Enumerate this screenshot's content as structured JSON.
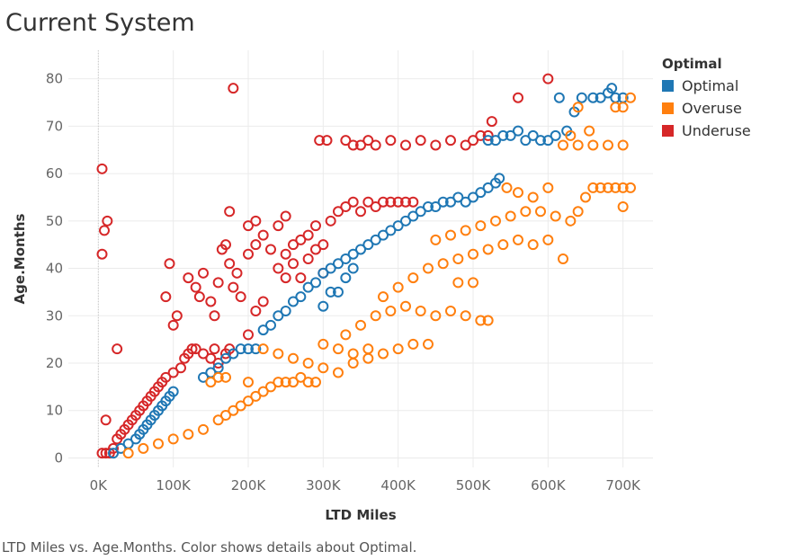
{
  "title": "Current System",
  "caption": "LTD Miles vs. Age.Months.  Color shows details about Optimal.",
  "legend": {
    "title": "Optimal",
    "items": [
      {
        "label": "Optimal",
        "color": "#1f77b4"
      },
      {
        "label": "Overuse",
        "color": "#ff7f0e"
      },
      {
        "label": "Underuse",
        "color": "#d62728"
      }
    ]
  },
  "chart_data": {
    "type": "scatter",
    "title": "Current System",
    "xlabel": "LTD Miles",
    "ylabel": "Age.Months",
    "xlim": [
      -40000,
      740000
    ],
    "ylim": [
      -2,
      86
    ],
    "xticks": [
      {
        "value": 0,
        "label": "0K"
      },
      {
        "value": 100000,
        "label": "100K"
      },
      {
        "value": 200000,
        "label": "200K"
      },
      {
        "value": 300000,
        "label": "300K"
      },
      {
        "value": 400000,
        "label": "400K"
      },
      {
        "value": 500000,
        "label": "500K"
      },
      {
        "value": 600000,
        "label": "600K"
      },
      {
        "value": 700000,
        "label": "700K"
      }
    ],
    "yticks": [
      {
        "value": 0,
        "label": "0"
      },
      {
        "value": 10,
        "label": "10"
      },
      {
        "value": 20,
        "label": "20"
      },
      {
        "value": 30,
        "label": "30"
      },
      {
        "value": 40,
        "label": "40"
      },
      {
        "value": 50,
        "label": "50"
      },
      {
        "value": 60,
        "label": "60"
      },
      {
        "value": 70,
        "label": "70"
      },
      {
        "value": 80,
        "label": "80"
      }
    ],
    "grid": true,
    "legend_position": "right",
    "series": [
      {
        "name": "Underuse",
        "color": "#d62728",
        "points": [
          [
            5000,
            1
          ],
          [
            10000,
            1
          ],
          [
            15000,
            1
          ],
          [
            20000,
            2
          ],
          [
            10000,
            8
          ],
          [
            25000,
            4
          ],
          [
            30000,
            5
          ],
          [
            35000,
            6
          ],
          [
            40000,
            7
          ],
          [
            45000,
            8
          ],
          [
            50000,
            9
          ],
          [
            55000,
            10
          ],
          [
            60000,
            11
          ],
          [
            65000,
            12
          ],
          [
            70000,
            13
          ],
          [
            25000,
            23
          ],
          [
            5000,
            43
          ],
          [
            8000,
            48
          ],
          [
            12000,
            50
          ],
          [
            5000,
            61
          ],
          [
            75000,
            14
          ],
          [
            80000,
            15
          ],
          [
            85000,
            16
          ],
          [
            90000,
            17
          ],
          [
            100000,
            18
          ],
          [
            110000,
            19
          ],
          [
            115000,
            21
          ],
          [
            120000,
            22
          ],
          [
            125000,
            23
          ],
          [
            130000,
            23
          ],
          [
            140000,
            22
          ],
          [
            150000,
            21
          ],
          [
            155000,
            23
          ],
          [
            160000,
            20
          ],
          [
            170000,
            22
          ],
          [
            175000,
            23
          ],
          [
            90000,
            34
          ],
          [
            100000,
            28
          ],
          [
            105000,
            30
          ],
          [
            95000,
            41
          ],
          [
            120000,
            38
          ],
          [
            130000,
            36
          ],
          [
            135000,
            34
          ],
          [
            140000,
            39
          ],
          [
            150000,
            33
          ],
          [
            155000,
            30
          ],
          [
            160000,
            37
          ],
          [
            165000,
            44
          ],
          [
            170000,
            45
          ],
          [
            175000,
            41
          ],
          [
            180000,
            36
          ],
          [
            185000,
            39
          ],
          [
            190000,
            34
          ],
          [
            200000,
            43
          ],
          [
            210000,
            45
          ],
          [
            220000,
            47
          ],
          [
            230000,
            44
          ],
          [
            240000,
            49
          ],
          [
            250000,
            43
          ],
          [
            260000,
            45
          ],
          [
            270000,
            46
          ],
          [
            280000,
            47
          ],
          [
            290000,
            49
          ],
          [
            300000,
            45
          ],
          [
            310000,
            50
          ],
          [
            320000,
            52
          ],
          [
            330000,
            53
          ],
          [
            340000,
            54
          ],
          [
            350000,
            52
          ],
          [
            360000,
            54
          ],
          [
            370000,
            53
          ],
          [
            380000,
            54
          ],
          [
            390000,
            54
          ],
          [
            400000,
            54
          ],
          [
            410000,
            54
          ],
          [
            420000,
            54
          ],
          [
            175000,
            52
          ],
          [
            200000,
            49
          ],
          [
            250000,
            51
          ],
          [
            210000,
            50
          ],
          [
            240000,
            40
          ],
          [
            250000,
            38
          ],
          [
            260000,
            41
          ],
          [
            270000,
            38
          ],
          [
            280000,
            42
          ],
          [
            290000,
            44
          ],
          [
            300000,
            39
          ],
          [
            200000,
            26
          ],
          [
            210000,
            31
          ],
          [
            220000,
            33
          ],
          [
            180000,
            78
          ],
          [
            295000,
            67
          ],
          [
            305000,
            67
          ],
          [
            350000,
            66
          ],
          [
            370000,
            66
          ],
          [
            390000,
            67
          ],
          [
            410000,
            66
          ],
          [
            430000,
            67
          ],
          [
            450000,
            66
          ],
          [
            470000,
            67
          ],
          [
            490000,
            66
          ],
          [
            500000,
            67
          ],
          [
            510000,
            68
          ],
          [
            520000,
            68
          ],
          [
            525000,
            71
          ],
          [
            560000,
            76
          ],
          [
            600000,
            80
          ],
          [
            330000,
            67
          ],
          [
            340000,
            66
          ],
          [
            360000,
            67
          ]
        ]
      },
      {
        "name": "Optimal",
        "color": "#1f77b4",
        "points": [
          [
            20000,
            1
          ],
          [
            30000,
            2
          ],
          [
            40000,
            3
          ],
          [
            50000,
            4
          ],
          [
            55000,
            5
          ],
          [
            60000,
            6
          ],
          [
            65000,
            7
          ],
          [
            70000,
            8
          ],
          [
            75000,
            9
          ],
          [
            80000,
            10
          ],
          [
            85000,
            11
          ],
          [
            90000,
            12
          ],
          [
            95000,
            13
          ],
          [
            100000,
            14
          ],
          [
            140000,
            17
          ],
          [
            150000,
            18
          ],
          [
            160000,
            19
          ],
          [
            170000,
            21
          ],
          [
            180000,
            22
          ],
          [
            190000,
            23
          ],
          [
            200000,
            23
          ],
          [
            210000,
            23
          ],
          [
            220000,
            27
          ],
          [
            230000,
            28
          ],
          [
            240000,
            30
          ],
          [
            250000,
            31
          ],
          [
            260000,
            33
          ],
          [
            270000,
            34
          ],
          [
            280000,
            36
          ],
          [
            290000,
            37
          ],
          [
            300000,
            39
          ],
          [
            310000,
            40
          ],
          [
            320000,
            41
          ],
          [
            330000,
            42
          ],
          [
            340000,
            43
          ],
          [
            350000,
            44
          ],
          [
            360000,
            45
          ],
          [
            370000,
            46
          ],
          [
            380000,
            47
          ],
          [
            390000,
            48
          ],
          [
            400000,
            49
          ],
          [
            410000,
            50
          ],
          [
            420000,
            51
          ],
          [
            430000,
            52
          ],
          [
            440000,
            53
          ],
          [
            450000,
            53
          ],
          [
            460000,
            54
          ],
          [
            470000,
            54
          ],
          [
            480000,
            55
          ],
          [
            490000,
            54
          ],
          [
            500000,
            55
          ],
          [
            510000,
            56
          ],
          [
            520000,
            57
          ],
          [
            530000,
            58
          ],
          [
            535000,
            59
          ],
          [
            520000,
            67
          ],
          [
            530000,
            67
          ],
          [
            540000,
            68
          ],
          [
            550000,
            68
          ],
          [
            560000,
            69
          ],
          [
            570000,
            67
          ],
          [
            580000,
            68
          ],
          [
            590000,
            67
          ],
          [
            600000,
            67
          ],
          [
            610000,
            68
          ],
          [
            625000,
            69
          ],
          [
            615000,
            76
          ],
          [
            635000,
            73
          ],
          [
            645000,
            76
          ],
          [
            660000,
            76
          ],
          [
            670000,
            76
          ],
          [
            680000,
            77
          ],
          [
            690000,
            76
          ],
          [
            700000,
            76
          ],
          [
            685000,
            78
          ],
          [
            320000,
            35
          ],
          [
            330000,
            38
          ],
          [
            340000,
            40
          ],
          [
            300000,
            32
          ],
          [
            310000,
            35
          ]
        ]
      },
      {
        "name": "Overuse",
        "color": "#ff7f0e",
        "points": [
          [
            40000,
            1
          ],
          [
            60000,
            2
          ],
          [
            80000,
            3
          ],
          [
            100000,
            4
          ],
          [
            120000,
            5
          ],
          [
            140000,
            6
          ],
          [
            160000,
            8
          ],
          [
            170000,
            9
          ],
          [
            180000,
            10
          ],
          [
            190000,
            11
          ],
          [
            200000,
            12
          ],
          [
            210000,
            13
          ],
          [
            220000,
            14
          ],
          [
            230000,
            15
          ],
          [
            240000,
            16
          ],
          [
            250000,
            16
          ],
          [
            260000,
            16
          ],
          [
            270000,
            17
          ],
          [
            280000,
            16
          ],
          [
            290000,
            16
          ],
          [
            150000,
            16
          ],
          [
            160000,
            17
          ],
          [
            170000,
            17
          ],
          [
            200000,
            16
          ],
          [
            220000,
            23
          ],
          [
            240000,
            22
          ],
          [
            260000,
            21
          ],
          [
            280000,
            20
          ],
          [
            300000,
            19
          ],
          [
            320000,
            18
          ],
          [
            340000,
            20
          ],
          [
            360000,
            21
          ],
          [
            380000,
            22
          ],
          [
            400000,
            23
          ],
          [
            420000,
            24
          ],
          [
            440000,
            24
          ],
          [
            300000,
            24
          ],
          [
            320000,
            23
          ],
          [
            340000,
            22
          ],
          [
            360000,
            23
          ],
          [
            330000,
            26
          ],
          [
            350000,
            28
          ],
          [
            370000,
            30
          ],
          [
            390000,
            31
          ],
          [
            410000,
            32
          ],
          [
            430000,
            31
          ],
          [
            450000,
            30
          ],
          [
            470000,
            31
          ],
          [
            490000,
            30
          ],
          [
            510000,
            29
          ],
          [
            380000,
            34
          ],
          [
            400000,
            36
          ],
          [
            420000,
            38
          ],
          [
            440000,
            40
          ],
          [
            460000,
            41
          ],
          [
            480000,
            42
          ],
          [
            500000,
            43
          ],
          [
            520000,
            44
          ],
          [
            540000,
            45
          ],
          [
            560000,
            46
          ],
          [
            580000,
            45
          ],
          [
            600000,
            46
          ],
          [
            620000,
            42
          ],
          [
            450000,
            46
          ],
          [
            470000,
            47
          ],
          [
            490000,
            48
          ],
          [
            510000,
            49
          ],
          [
            530000,
            50
          ],
          [
            550000,
            51
          ],
          [
            570000,
            52
          ],
          [
            590000,
            52
          ],
          [
            610000,
            51
          ],
          [
            630000,
            50
          ],
          [
            640000,
            52
          ],
          [
            650000,
            55
          ],
          [
            660000,
            57
          ],
          [
            670000,
            57
          ],
          [
            680000,
            57
          ],
          [
            690000,
            57
          ],
          [
            700000,
            57
          ],
          [
            710000,
            57
          ],
          [
            700000,
            53
          ],
          [
            620000,
            66
          ],
          [
            640000,
            66
          ],
          [
            660000,
            66
          ],
          [
            680000,
            66
          ],
          [
            700000,
            66
          ],
          [
            690000,
            74
          ],
          [
            700000,
            74
          ],
          [
            710000,
            76
          ],
          [
            655000,
            69
          ],
          [
            640000,
            74
          ],
          [
            630000,
            68
          ],
          [
            545000,
            57
          ],
          [
            560000,
            56
          ],
          [
            580000,
            55
          ],
          [
            600000,
            57
          ],
          [
            480000,
            37
          ],
          [
            500000,
            37
          ],
          [
            520000,
            29
          ]
        ]
      }
    ]
  }
}
